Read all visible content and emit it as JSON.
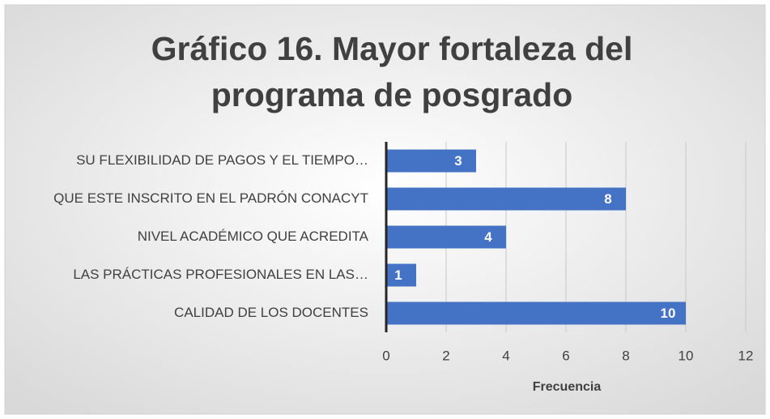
{
  "chart_data": {
    "type": "bar",
    "orientation": "horizontal",
    "title": "Gráfico 16. Mayor fortaleza del programa de posgrado",
    "categories": [
      "SU FLEXIBILIDAD DE PAGOS Y EL TIEMPO…",
      "QUE ESTE INSCRITO EN EL PADRÓN CONACYT",
      "NIVEL ACADÉMICO QUE ACREDITA",
      "LAS PRÁCTICAS PROFESIONALES EN LAS…",
      "CALIDAD DE LOS DOCENTES"
    ],
    "values": [
      3,
      8,
      4,
      1,
      10
    ],
    "color": "#4472c4",
    "xlabel": "Frecuencia",
    "xlim": [
      0,
      12
    ],
    "xticks": [
      0,
      2,
      4,
      6,
      8,
      10,
      12
    ],
    "grid": true
  }
}
